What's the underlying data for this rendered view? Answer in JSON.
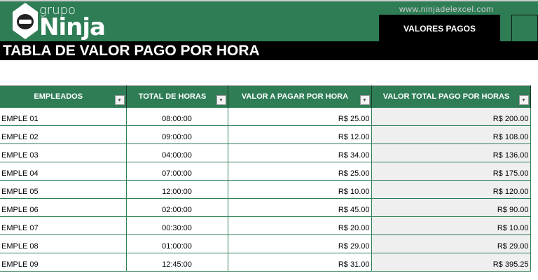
{
  "brand": {
    "grupo": "grupo",
    "ninja": "Ninja",
    "url": "www.ninjadelexcel.com"
  },
  "tabs": [
    {
      "label": "VALORES PAGOS"
    }
  ],
  "title": "TABLA DE VALOR PAGO POR HORA",
  "colors": {
    "accent": "#2e7d55",
    "header_bar": "#000000"
  },
  "table": {
    "columns": [
      "EMPLEADOS",
      "TOTAL DE HORAS",
      "VALOR A PAGAR POR HORA",
      "VALOR TOTAL PAGO POR HORAS"
    ],
    "rows": [
      [
        "EMPLE 01",
        "08:00:00",
        "R$ 25.00",
        "R$ 200.00"
      ],
      [
        "EMPLE 02",
        "09:00:00",
        "R$ 12.00",
        "R$ 108.00"
      ],
      [
        "EMPLE 03",
        "04:00:00",
        "R$ 34.00",
        "R$ 136.00"
      ],
      [
        "EMPLE 04",
        "07:00:00",
        "R$ 25.00",
        "R$ 175.00"
      ],
      [
        "EMPLE 05",
        "12:00:00",
        "R$ 10.00",
        "R$ 120.00"
      ],
      [
        "EMPLE 06",
        "02:00:00",
        "R$ 45.00",
        "R$ 90.00"
      ],
      [
        "EMPLE 07",
        "00:30:00",
        "R$ 20.00",
        "R$ 10.00"
      ],
      [
        "EMPLE 08",
        "01:00:00",
        "R$ 29.00",
        "R$ 29.00"
      ],
      [
        "EMPLE 09",
        "12:45:00",
        "R$ 31.00",
        "R$ 395.25"
      ]
    ]
  }
}
